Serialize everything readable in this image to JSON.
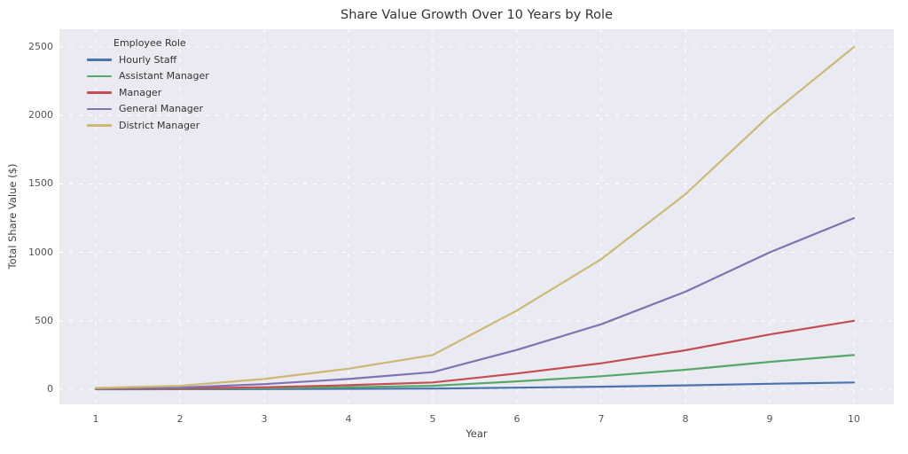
{
  "figure": {
    "background": "#ffffff",
    "plot_background": "#eaeaf2",
    "grid_color": "#ffffff"
  },
  "chart_data": {
    "type": "line",
    "title": "Share Value Growth Over 10 Years by Role",
    "xlabel": "Year",
    "ylabel": "Total Share Value ($)",
    "x": [
      1,
      2,
      3,
      4,
      5,
      6,
      7,
      8,
      9,
      10
    ],
    "x_ticks": [
      1,
      2,
      3,
      4,
      5,
      6,
      7,
      8,
      9,
      10
    ],
    "y_ticks": [
      0,
      500,
      1000,
      1500,
      2000,
      2500
    ],
    "xlim": [
      0.57,
      10.47
    ],
    "ylim": [
      -110,
      2630
    ],
    "grid": "white-dashed",
    "legend": {
      "title": "Employee Role",
      "position": "upper-left",
      "frame": false
    },
    "series": [
      {
        "name": "Hourly Staff",
        "color": "#4c72b0",
        "values": [
          0.2,
          0.5,
          1.5,
          3,
          5,
          11.5,
          19,
          28.5,
          40,
          50
        ]
      },
      {
        "name": "Assistant Manager",
        "color": "#55a868",
        "values": [
          1,
          2.5,
          7.5,
          15,
          25,
          57.5,
          95,
          142.5,
          200,
          250
        ]
      },
      {
        "name": "Manager",
        "color": "#c44e52",
        "values": [
          2,
          5,
          15,
          30,
          50,
          115,
          190,
          285,
          400,
          500
        ]
      },
      {
        "name": "General Manager",
        "color": "#8172b2",
        "values": [
          5,
          12.5,
          37.5,
          75,
          125,
          287.5,
          475,
          712.5,
          1000,
          1250
        ]
      },
      {
        "name": "District Manager",
        "color": "#ccb974",
        "values": [
          10,
          25,
          75,
          150,
          250,
          575,
          950,
          1425,
          2000,
          2500
        ]
      }
    ]
  }
}
